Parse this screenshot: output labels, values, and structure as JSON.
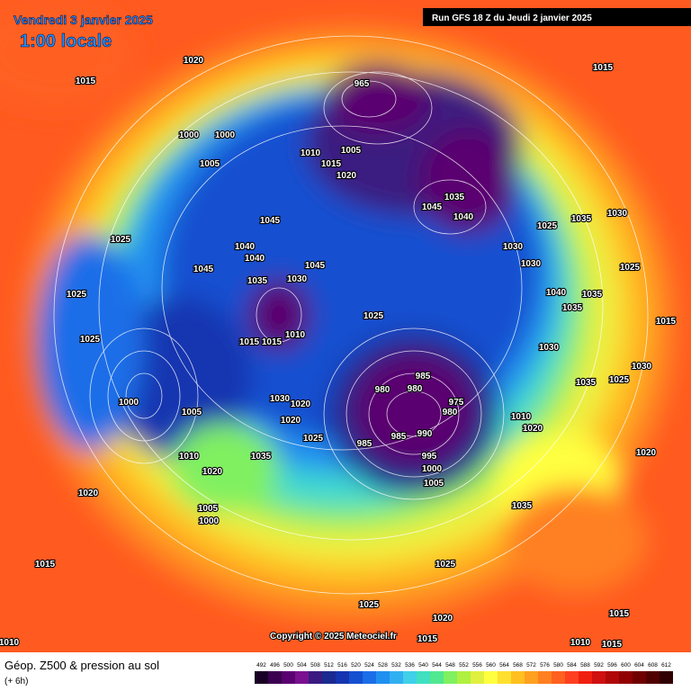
{
  "header": {
    "date": "Vendredi 3 janvier 2025",
    "time": "1:00 locale",
    "run": "Run GFS 18 Z du Jeudi 2 janvier 2025"
  },
  "footer": {
    "title": "Géop. Z500 & pression au sol",
    "step": "(+ 6h)",
    "copyright": "Copyright © 2025 Meteociel.fr"
  },
  "legend": {
    "values": [
      492,
      496,
      500,
      504,
      508,
      512,
      516,
      520,
      524,
      528,
      532,
      536,
      540,
      544,
      548,
      552,
      556,
      560,
      564,
      568,
      572,
      576,
      580,
      584,
      588,
      592,
      596,
      600,
      604,
      608,
      612
    ],
    "colors": [
      "#1a0026",
      "#3c0050",
      "#5a0070",
      "#7a1090",
      "#3a1a80",
      "#1a2a90",
      "#1535b0",
      "#1450d0",
      "#1a6ee8",
      "#2090f0",
      "#30b0f0",
      "#40d0e8",
      "#40e0c0",
      "#50e890",
      "#80f060",
      "#b0f040",
      "#e0f040",
      "#ffff40",
      "#ffe030",
      "#ffc020",
      "#ffa020",
      "#ff8020",
      "#ff6020",
      "#ff4020",
      "#f02010",
      "#d01010",
      "#b00808",
      "#900000",
      "#700000",
      "#500000",
      "#300000"
    ]
  },
  "pressure_labels": [
    "1015",
    "1020",
    "1000",
    "1000",
    "1005",
    "965",
    "1010",
    "1005",
    "1015",
    "1020",
    "1035",
    "1045",
    "1040",
    "1015",
    "1025",
    "1045",
    "1040",
    "1040",
    "1045",
    "1035",
    "1030",
    "1045",
    "1025",
    "1025",
    "1025",
    "1015",
    "1015",
    "1010",
    "1025",
    "1030",
    "1030",
    "1030",
    "1035",
    "1025",
    "1040",
    "1035",
    "1035",
    "1030",
    "1015",
    "1030",
    "1035",
    "1025",
    "1000",
    "1005",
    "980",
    "980",
    "985",
    "975",
    "980",
    "1030",
    "1020",
    "1020",
    "985",
    "990",
    "995",
    "1000",
    "1005",
    "985",
    "1010",
    "1020",
    "1035",
    "1025",
    "1010",
    "1020",
    "1020",
    "1005",
    "1000",
    "1035",
    "1020",
    "1015",
    "1025",
    "1025",
    "1020",
    "1015",
    "1015",
    "1010",
    "1015",
    "1010"
  ]
}
